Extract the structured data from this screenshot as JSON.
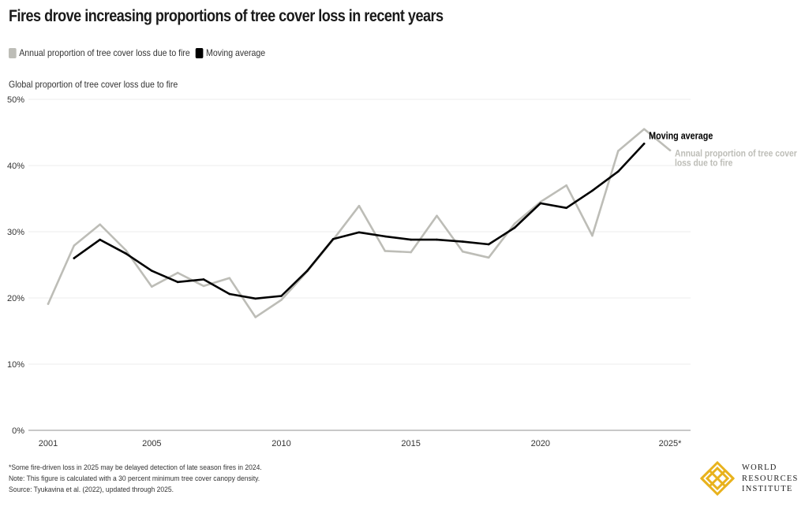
{
  "title": "Fires drove increasing proportions of tree cover loss in recent years",
  "legend": [
    {
      "label": "Annual proportion of tree cover loss due to fire",
      "color": "#bdbdb7"
    },
    {
      "label": "Moving average",
      "color": "#000000"
    }
  ],
  "y_axis_title": "Global proportion of tree cover loss due to fire",
  "footnotes": [
    "*Some fire-driven loss in 2025 may be delayed detection of late season fires in 2024.",
    "Note: This figure is calculated with a 30 percent minimum tree cover canopy density.",
    "Source: Tyukavina et al. (2022), updated through 2025."
  ],
  "logo": {
    "lines": [
      "WORLD",
      "RESOURCES",
      "INSTITUTE"
    ],
    "color": "#e8b21c"
  },
  "chart_data": {
    "type": "line",
    "x": [
      2001,
      2002,
      2003,
      2004,
      2005,
      2006,
      2007,
      2008,
      2009,
      2010,
      2011,
      2012,
      2013,
      2014,
      2015,
      2016,
      2017,
      2018,
      2019,
      2020,
      2021,
      2022,
      2023,
      2024,
      2025
    ],
    "series": [
      {
        "name": "Annual proportion of tree cover loss due to fire",
        "color": "#bdbdb7",
        "end_label": "Annual proportion of tree cover loss due to fire",
        "values": [
          19.1,
          27.9,
          31.1,
          27.2,
          21.7,
          23.8,
          21.8,
          23.0,
          17.1,
          19.7,
          24.0,
          28.8,
          33.9,
          27.1,
          26.9,
          32.4,
          27.0,
          26.1,
          31.2,
          34.5,
          37.0,
          29.4,
          42.2,
          45.5,
          42.3
        ]
      },
      {
        "name": "Moving average",
        "color": "#000000",
        "end_label": "Moving average",
        "values": [
          null,
          26.0,
          28.8,
          26.7,
          24.1,
          22.4,
          22.8,
          20.6,
          19.9,
          20.3,
          24.1,
          28.9,
          29.9,
          29.3,
          28.8,
          28.8,
          28.5,
          28.1,
          30.6,
          34.3,
          33.6,
          36.2,
          39.1,
          43.3,
          null
        ]
      }
    ],
    "x_ticks": [
      "2001",
      "2005",
      "2010",
      "2015",
      "2020",
      "2025*"
    ],
    "x_tick_values": [
      2001,
      2005,
      2010,
      2015,
      2020,
      2025
    ],
    "y_ticks": [
      "0%",
      "10%",
      "20%",
      "30%",
      "40%",
      "50%"
    ],
    "y_tick_values": [
      0,
      10,
      20,
      30,
      40,
      50
    ],
    "ylim": [
      0,
      50
    ],
    "xlim": [
      2001,
      2025
    ],
    "grid": true,
    "legend_position": "top-left"
  }
}
